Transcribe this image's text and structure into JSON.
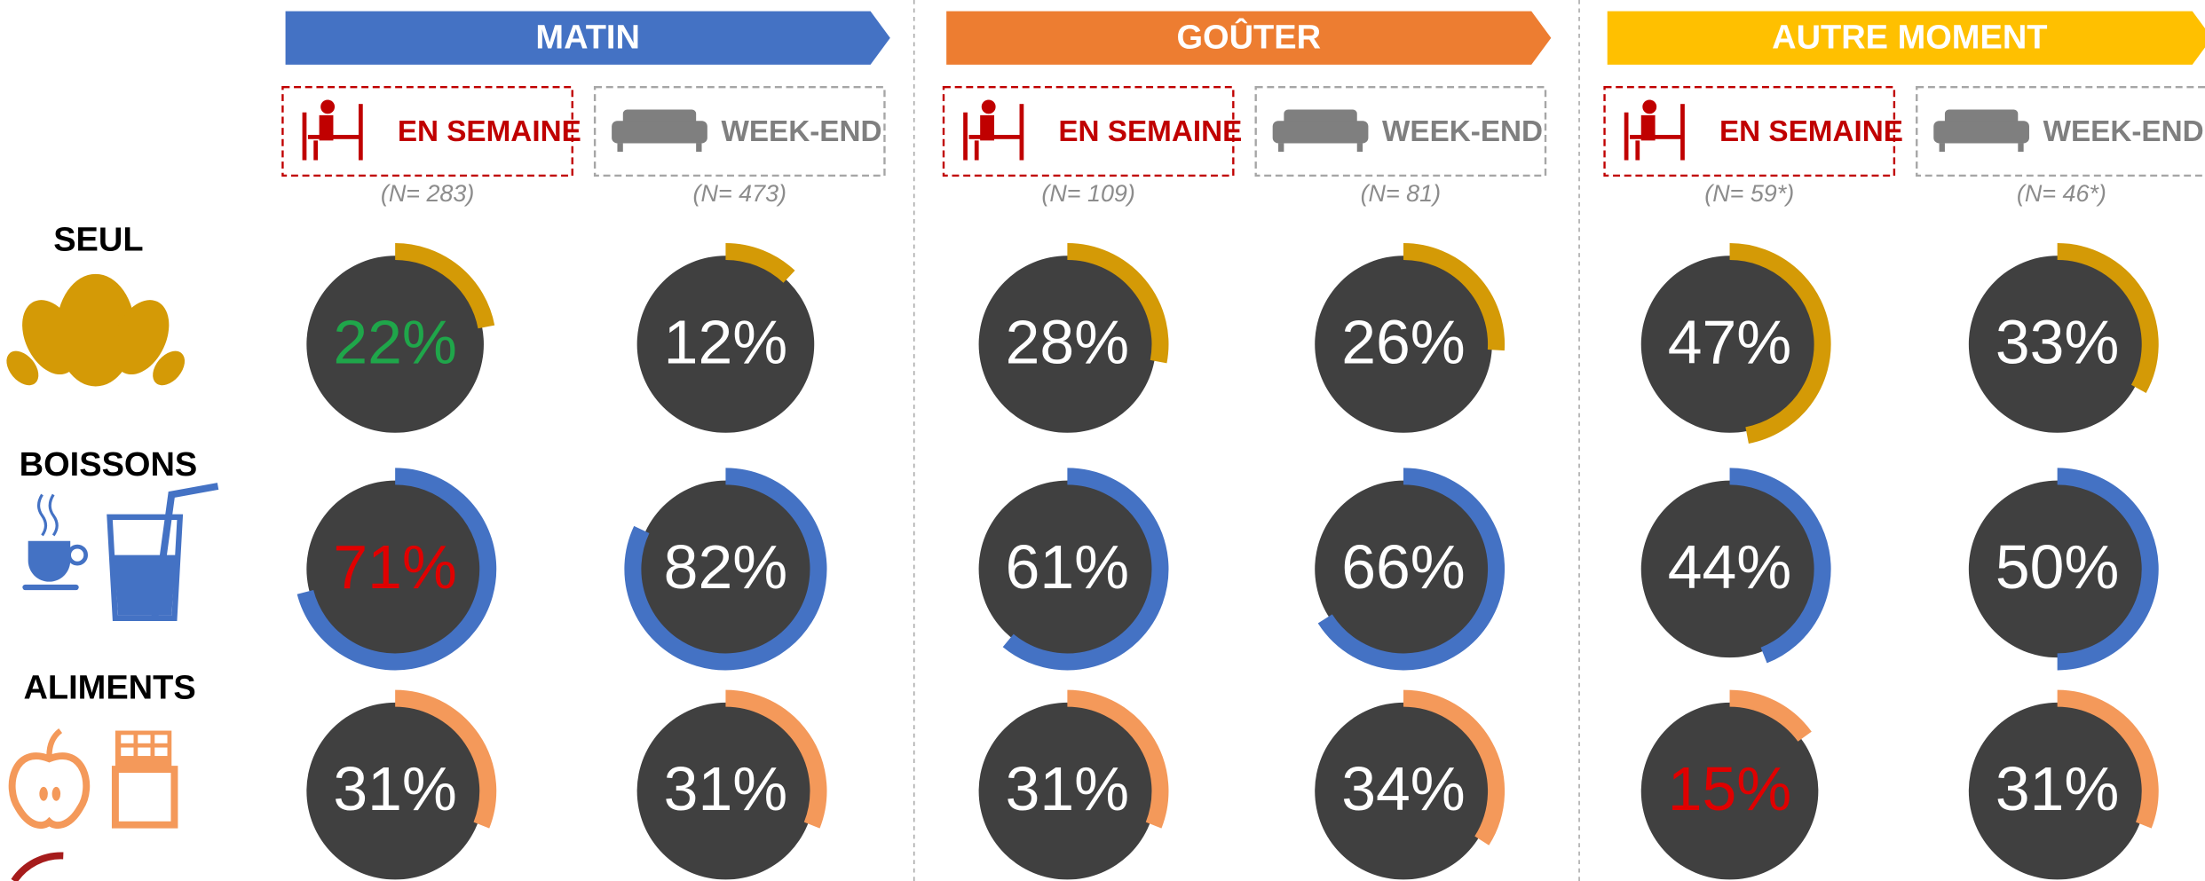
{
  "chart_data": {
    "type": "ring",
    "groups": [
      {
        "title": "MATIN",
        "color": "#4472c4",
        "columns": [
          {
            "label": "EN SEMAINE",
            "n": "(N= 283)"
          },
          {
            "label": "WEEK-END",
            "n": "(N= 473)"
          }
        ]
      },
      {
        "title": "GOÛTER",
        "color": "#ed7d31",
        "columns": [
          {
            "label": "EN SEMAINE",
            "n": "(N= 109)"
          },
          {
            "label": "WEEK-END",
            "n": "(N= 81)"
          }
        ]
      },
      {
        "title": "AUTRE MOMENT",
        "color": "#ffc000",
        "columns": [
          {
            "label": "EN SEMAINE",
            "n": "(N= 59*)"
          },
          {
            "label": "WEEK-END",
            "n": "(N= 46*)"
          }
        ]
      }
    ],
    "rows": [
      {
        "label": "SEUL",
        "color": "#d49a06"
      },
      {
        "label": "BOISSONS",
        "color": "#4472c4"
      },
      {
        "label": "ALIMENTS",
        "color": "#f4995a"
      }
    ],
    "values": [
      [
        22,
        12,
        28,
        26,
        47,
        33
      ],
      [
        71,
        82,
        61,
        66,
        44,
        50
      ],
      [
        31,
        31,
        31,
        34,
        15,
        31
      ]
    ],
    "value_labels": [
      [
        "22%",
        "12%",
        "28%",
        "26%",
        "47%",
        "33%"
      ],
      [
        "71%",
        "82%",
        "61%",
        "66%",
        "44%",
        "50%"
      ],
      [
        "31%",
        "31%",
        "31%",
        "34%",
        "15%",
        "31%"
      ]
    ],
    "value_label_colors": [
      [
        "#1fa64a",
        "#ffffff",
        "#ffffff",
        "#ffffff",
        "#ffffff",
        "#ffffff"
      ],
      [
        "#e00000",
        "#ffffff",
        "#ffffff",
        "#ffffff",
        "#ffffff",
        "#ffffff"
      ],
      [
        "#ffffff",
        "#ffffff",
        "#ffffff",
        "#ffffff",
        "#e00000",
        "#ffffff"
      ]
    ],
    "ylim": [
      0,
      100
    ]
  }
}
